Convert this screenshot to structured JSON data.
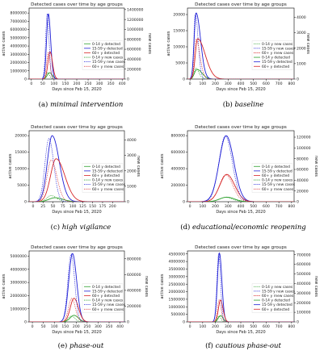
{
  "colors": {
    "green": "#2ca02c",
    "blue": "#1f1fd6",
    "red": "#d62728",
    "text": "#222222"
  },
  "legend_labels": [
    "0-14 y detected",
    "15-59 y detected",
    "60+ y detected",
    "0-14 y new cases",
    "15-59 y new cases",
    "60+ y rnew cases"
  ],
  "legend_labels_alt": [
    "0-14 y new cases",
    "15-59 y new cases",
    "60+ y rnew cases",
    "0-14 y detected",
    "15-59 y detected",
    "60+ y detected"
  ],
  "chart_data": [
    {
      "type": "line",
      "title": "Detected cases over time by age groups",
      "xlabel": "Days since Feb 15, 2020",
      "ylabel": "active cases",
      "y2label": "new cases",
      "caption_label": "(a)",
      "caption_name": "minimal intervention",
      "xlim": [
        -10,
        410
      ],
      "xticks": [
        0,
        50,
        100,
        150,
        200,
        250,
        300,
        350,
        400
      ],
      "ylim": [
        0,
        8600000
      ],
      "yticks": [
        0,
        1000000,
        2000000,
        3000000,
        4000000,
        5000000,
        6000000,
        7000000,
        8000000
      ],
      "ytick_labels": [
        "0",
        "1000000",
        "2000000",
        "3000000",
        "4000000",
        "5000000",
        "6000000",
        "7000000",
        "8000000"
      ],
      "y2lim": [
        0,
        1430000
      ],
      "y2ticks": [
        0,
        200000,
        400000,
        600000,
        800000,
        1000000,
        1200000,
        1400000
      ],
      "y2tick_labels": [
        "0",
        "200000",
        "400000",
        "600000",
        "800000",
        "1000000",
        "1200000",
        "1400000"
      ],
      "legend_order": "detected-first",
      "series": [
        {
          "name": "0-14 y detected",
          "color": "green",
          "style": "solid",
          "axis": "left",
          "peak_x": 80,
          "peak": 780000,
          "rise": 10,
          "fall": 12
        },
        {
          "name": "15-59 y detected",
          "color": "blue",
          "style": "solid",
          "axis": "left",
          "peak_x": 75,
          "peak": 7900000,
          "rise": 8,
          "fall": 10
        },
        {
          "name": "60+ y detected",
          "color": "red",
          "style": "solid",
          "axis": "left",
          "peak_x": 82,
          "peak": 3300000,
          "rise": 9,
          "fall": 11
        },
        {
          "name": "0-14 y new cases",
          "color": "green",
          "style": "dotted",
          "axis": "right",
          "peak_x": 72,
          "peak": 130000,
          "rise": 7,
          "fall": 8
        },
        {
          "name": "15-59 y new cases",
          "color": "blue",
          "style": "dotted",
          "axis": "right",
          "peak_x": 70,
          "peak": 1320000,
          "rise": 7,
          "fall": 8
        },
        {
          "name": "60+ y rnew cases",
          "color": "red",
          "style": "dotted",
          "axis": "right",
          "peak_x": 74,
          "peak": 530000,
          "rise": 7,
          "fall": 8
        }
      ]
    },
    {
      "type": "line",
      "title": "Detected cases over time by age groups",
      "xlabel": "Days since Feb 15, 2020",
      "ylabel": "active cases",
      "y2label": "new cases",
      "caption_label": "(b)",
      "caption_name": "baseline",
      "xlim": [
        -20,
        820
      ],
      "xticks": [
        0,
        100,
        200,
        300,
        400,
        500,
        600,
        700,
        800
      ],
      "ylim": [
        0,
        22000
      ],
      "yticks": [
        0,
        5000,
        10000,
        15000,
        20000
      ],
      "ytick_labels": [
        "0",
        "5000",
        "10000",
        "15000",
        "20000"
      ],
      "y2lim": [
        0,
        4600
      ],
      "y2ticks": [
        0,
        1000,
        2000,
        3000,
        4000
      ],
      "y2tick_labels": [
        "0",
        "1000",
        "2000",
        "3000",
        "4000"
      ],
      "legend_order": "new-first",
      "series": [
        {
          "name": "0-14 y detected",
          "color": "green",
          "style": "solid",
          "axis": "left",
          "peak_x": 55,
          "peak": 3000,
          "rise": 20,
          "fall": 40
        },
        {
          "name": "15-59 y detected",
          "color": "blue",
          "style": "solid",
          "axis": "left",
          "peak_x": 48,
          "peak": 20500,
          "rise": 15,
          "fall": 35
        },
        {
          "name": "60+ y detected",
          "color": "red",
          "style": "solid",
          "axis": "left",
          "peak_x": 60,
          "peak": 12500,
          "rise": 18,
          "fall": 60
        },
        {
          "name": "0-14 y new cases",
          "color": "green",
          "style": "dotted",
          "axis": "right",
          "peak_x": 45,
          "peak": 700,
          "rise": 12,
          "fall": 25
        },
        {
          "name": "15-59 y new cases",
          "color": "blue",
          "style": "dotted",
          "axis": "right",
          "peak_x": 42,
          "peak": 4200,
          "rise": 12,
          "fall": 22
        },
        {
          "name": "60+ y rnew cases",
          "color": "red",
          "style": "dotted",
          "axis": "right",
          "peak_x": 48,
          "peak": 2600,
          "rise": 14,
          "fall": 30
        }
      ]
    },
    {
      "type": "line",
      "title": "Detected cases over time by age groups",
      "xlabel": "Days since Feb 15, 2020",
      "ylabel": "active cases",
      "y2label": "new cases",
      "caption_label": "(c)",
      "caption_name": "high vigilance",
      "xlim": [
        -10,
        230
      ],
      "xticks": [
        0,
        25,
        50,
        75,
        100,
        125,
        150,
        175,
        200
      ],
      "ylim": [
        0,
        21500
      ],
      "yticks": [
        0,
        5000,
        10000,
        15000,
        20000
      ],
      "ytick_labels": [
        "0",
        "5000",
        "10000",
        "15000",
        "20000"
      ],
      "y2lim": [
        0,
        4600
      ],
      "y2ticks": [
        0,
        1000,
        2000,
        3000,
        4000
      ],
      "y2tick_labels": [
        "0",
        "1000",
        "2000",
        "3000",
        "4000"
      ],
      "legend_order": "detected-first",
      "series": [
        {
          "name": "0-14 y detected",
          "color": "green",
          "style": "solid",
          "axis": "left",
          "peak_x": 55,
          "peak": 1200,
          "rise": 15,
          "fall": 20
        },
        {
          "name": "15-59 y detected",
          "color": "blue",
          "style": "solid",
          "axis": "left",
          "peak_x": 48,
          "peak": 20000,
          "rise": 12,
          "fall": 18
        },
        {
          "name": "60+ y detected",
          "color": "red",
          "style": "solid",
          "axis": "left",
          "peak_x": 58,
          "peak": 13000,
          "rise": 14,
          "fall": 22
        },
        {
          "name": "0-14 y new cases",
          "color": "green",
          "style": "dotted",
          "axis": "right",
          "peak_x": 45,
          "peak": 400,
          "rise": 10,
          "fall": 14
        },
        {
          "name": "15-59 y new cases",
          "color": "blue",
          "style": "dotted",
          "axis": "right",
          "peak_x": 40,
          "peak": 4100,
          "rise": 10,
          "fall": 12
        },
        {
          "name": "60+ y rnew cases",
          "color": "red",
          "style": "dotted",
          "axis": "right",
          "peak_x": 46,
          "peak": 2700,
          "rise": 11,
          "fall": 14
        }
      ]
    },
    {
      "type": "line",
      "title": "Detected cases over time by age groups",
      "xlabel": "Days since Feb 15, 2020",
      "ylabel": "active cases",
      "y2label": "new cases",
      "caption_label": "(d)",
      "caption_name": "educational/economic reopening",
      "xlim": [
        -20,
        820
      ],
      "xticks": [
        0,
        100,
        200,
        300,
        400,
        500,
        600,
        700,
        800
      ],
      "ylim": [
        0,
        860000
      ],
      "yticks": [
        0,
        200000,
        400000,
        600000,
        800000
      ],
      "ytick_labels": [
        "0",
        "200000",
        "400000",
        "600000",
        "800000"
      ],
      "y2lim": [
        0,
        132000
      ],
      "y2ticks": [
        0,
        20000,
        40000,
        60000,
        80000,
        100000,
        120000
      ],
      "y2tick_labels": [
        "0",
        "20000",
        "40000",
        "60000",
        "80000",
        "100000",
        "120000"
      ],
      "legend_order": "detected-first",
      "series": [
        {
          "name": "0-14 y detected",
          "color": "green",
          "style": "solid",
          "axis": "left",
          "peak_x": 290,
          "peak": 55000,
          "rise": 55,
          "fall": 60
        },
        {
          "name": "15-59 y detected",
          "color": "blue",
          "style": "solid",
          "axis": "left",
          "peak_x": 285,
          "peak": 800000,
          "rise": 55,
          "fall": 60
        },
        {
          "name": "60+ y detected",
          "color": "red",
          "style": "solid",
          "axis": "left",
          "peak_x": 290,
          "peak": 330000,
          "rise": 55,
          "fall": 62
        },
        {
          "name": "0-14 y new cases",
          "color": "green",
          "style": "dotted",
          "axis": "right",
          "peak_x": 280,
          "peak": 8000,
          "rise": 50,
          "fall": 55
        },
        {
          "name": "15-59 y new cases",
          "color": "blue",
          "style": "dotted",
          "axis": "right",
          "peak_x": 278,
          "peak": 122000,
          "rise": 50,
          "fall": 55
        },
        {
          "name": "60+ y rnew cases",
          "color": "red",
          "style": "dotted",
          "axis": "right",
          "peak_x": 282,
          "peak": 50000,
          "rise": 50,
          "fall": 56
        }
      ]
    },
    {
      "type": "line",
      "title": "Detected cases over time by age groups",
      "xlabel": "Days since Feb 15, 2020",
      "ylabel": "active cases",
      "y2label": "new cases",
      "caption_label": "(e)",
      "caption_name": "phase-out",
      "xlim": [
        -15,
        420
      ],
      "xticks": [
        0,
        50,
        100,
        150,
        200,
        250,
        300,
        350,
        400
      ],
      "ylim": [
        0,
        5400000
      ],
      "yticks": [
        0,
        1000000,
        2000000,
        3000000,
        4000000,
        5000000
      ],
      "ytick_labels": [
        "0",
        "1000000",
        "2000000",
        "3000000",
        "4000000",
        "5000000"
      ],
      "y2lim": [
        0,
        900000
      ],
      "y2ticks": [
        0,
        200000,
        400000,
        600000,
        800000
      ],
      "y2tick_labels": [
        "0",
        "200000",
        "400000",
        "600000",
        "800000"
      ],
      "legend_order": "detected-first",
      "series": [
        {
          "name": "0-14 y detected",
          "color": "green",
          "style": "solid",
          "axis": "left",
          "peak_x": 190,
          "peak": 500000,
          "rise": 18,
          "fall": 20
        },
        {
          "name": "15-59 y detected",
          "color": "blue",
          "style": "solid",
          "axis": "left",
          "peak_x": 183,
          "peak": 5200000,
          "rise": 17,
          "fall": 19
        },
        {
          "name": "60+ y detected",
          "color": "red",
          "style": "solid",
          "axis": "left",
          "peak_x": 190,
          "peak": 1800000,
          "rise": 17,
          "fall": 20
        },
        {
          "name": "0-14 y new cases",
          "color": "green",
          "style": "dotted",
          "axis": "right",
          "peak_x": 178,
          "peak": 75000,
          "rise": 15,
          "fall": 16
        },
        {
          "name": "15-59 y new cases",
          "color": "blue",
          "style": "dotted",
          "axis": "right",
          "peak_x": 177,
          "peak": 860000,
          "rise": 15,
          "fall": 16
        },
        {
          "name": "60+ y rnew cases",
          "color": "red",
          "style": "dotted",
          "axis": "right",
          "peak_x": 180,
          "peak": 300000,
          "rise": 15,
          "fall": 16
        }
      ]
    },
    {
      "type": "line",
      "title": "Detected cases over time by age groups",
      "xlabel": "Days since Feb 15, 2020",
      "ylabel": "active cases",
      "y2label": "new cases",
      "caption_label": "(f)",
      "caption_name": "cautious phase-out",
      "xlim": [
        -20,
        820
      ],
      "xticks": [
        0,
        100,
        200,
        300,
        400,
        500,
        600,
        700,
        800
      ],
      "ylim": [
        0,
        4700000
      ],
      "yticks": [
        0,
        500000,
        1000000,
        1500000,
        2000000,
        2500000,
        3000000,
        3500000,
        4000000,
        4500000
      ],
      "ytick_labels": [
        "0",
        "500000",
        "1000000",
        "1500000",
        "2000000",
        "2500000",
        "3000000",
        "3500000",
        "4000000",
        "4500000"
      ],
      "y2lim": [
        0,
        740000
      ],
      "y2ticks": [
        0,
        100000,
        200000,
        300000,
        400000,
        500000,
        600000,
        700000
      ],
      "y2tick_labels": [
        "0",
        "100000",
        "200000",
        "300000",
        "400000",
        "500000",
        "600000",
        "700000"
      ],
      "legend_order": "new-first",
      "series": [
        {
          "name": "0-14 y detected",
          "color": "green",
          "style": "solid",
          "axis": "left",
          "peak_x": 240,
          "peak": 420000,
          "rise": 17,
          "fall": 20
        },
        {
          "name": "15-59 y detected",
          "color": "blue",
          "style": "solid",
          "axis": "left",
          "peak_x": 232,
          "peak": 4550000,
          "rise": 16,
          "fall": 19
        },
        {
          "name": "60+ y detected",
          "color": "red",
          "style": "solid",
          "axis": "left",
          "peak_x": 240,
          "peak": 1450000,
          "rise": 16,
          "fall": 20
        },
        {
          "name": "0-14 y new cases",
          "color": "green",
          "style": "dotted",
          "axis": "right",
          "peak_x": 228,
          "peak": 60000,
          "rise": 14,
          "fall": 15
        },
        {
          "name": "15-59 y new cases",
          "color": "blue",
          "style": "dotted",
          "axis": "right",
          "peak_x": 226,
          "peak": 710000,
          "rise": 14,
          "fall": 15
        },
        {
          "name": "60+ y rnew cases",
          "color": "red",
          "style": "dotted",
          "axis": "right",
          "peak_x": 230,
          "peak": 230000,
          "rise": 14,
          "fall": 15
        }
      ]
    }
  ]
}
